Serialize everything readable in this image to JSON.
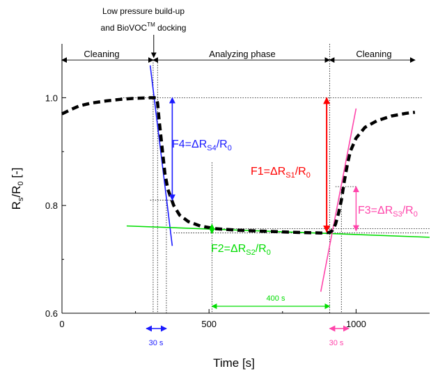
{
  "chart_data": {
    "type": "line",
    "xlabel": "Time [s]",
    "ylabel_main": "R",
    "ylabel_sub1": "s",
    "ylabel_mid": "/R",
    "ylabel_sub2": "0",
    "ylabel_end": " [-]",
    "xlim": [
      0,
      1250
    ],
    "ylim": [
      0.6,
      1.1
    ],
    "x_ticks": [
      {
        "value": 0,
        "label": "0"
      },
      {
        "value": 500,
        "label": "500"
      },
      {
        "value": 1000,
        "label": "1000"
      }
    ],
    "y_ticks": [
      {
        "value": 0.6,
        "label": "0.6"
      },
      {
        "value": 0.8,
        "label": "0.8"
      },
      {
        "value": 1.0,
        "label": "1.0"
      }
    ],
    "series": [
      {
        "color": "#000000",
        "style": "dashed",
        "x": [
          0,
          30,
          60,
          100,
          150,
          200,
          250,
          300,
          320,
          325,
          330,
          340,
          350,
          360,
          380,
          400,
          430,
          470,
          520,
          600,
          700,
          800,
          880,
          910,
          920,
          930,
          940,
          950,
          960,
          970,
          980,
          1000,
          1030,
          1070,
          1120,
          1170,
          1200
        ],
        "y": [
          0.97,
          0.978,
          0.985,
          0.99,
          0.994,
          0.997,
          0.999,
          1.0,
          1.0,
          0.99,
          0.96,
          0.91,
          0.86,
          0.83,
          0.8,
          0.782,
          0.77,
          0.762,
          0.757,
          0.754,
          0.752,
          0.75,
          0.749,
          0.75,
          0.754,
          0.765,
          0.785,
          0.81,
          0.845,
          0.875,
          0.9,
          0.925,
          0.945,
          0.957,
          0.966,
          0.971,
          0.973
        ]
      }
    ],
    "header_annotation": {
      "line1": "Low pressure build-up",
      "line2_pre": "and BioVOC",
      "line2_sup": "TM",
      "line2_post": " docking"
    },
    "phases": [
      {
        "label": "Cleaning",
        "x_start": 0,
        "x_end": 310
      },
      {
        "label": "Analyzing phase",
        "x_start": 310,
        "x_end": 910
      },
      {
        "label": "Cleaning",
        "x_start": 910,
        "x_end": 1200
      }
    ],
    "features": [
      {
        "id": "F1",
        "color": "#ff0000",
        "prefix": "F1=ΔR",
        "sub1": "S1",
        "mid": "/R",
        "sub2": "0"
      },
      {
        "id": "F2",
        "color": "#00dd00",
        "prefix": "F2=ΔR",
        "sub1": "S2",
        "mid": "/R",
        "sub2": "0"
      },
      {
        "id": "F3",
        "color": "#ff44aa",
        "prefix": "F3=ΔR",
        "sub1": "S3",
        "mid": "/R",
        "sub2": "0"
      },
      {
        "id": "F4",
        "color": "#1a1aff",
        "prefix": "F4=ΔR",
        "sub1": "S4",
        "mid": "/R",
        "sub2": "0"
      }
    ],
    "interval_labels": {
      "blue_30s": "30 s",
      "pink_30s": "30 s",
      "green_400s": "400 s"
    },
    "fit_lines": [
      {
        "color": "#1a1aff",
        "x1": 300,
        "y1": 1.06,
        "x2": 375,
        "y2": 0.725
      },
      {
        "color": "#00dd00",
        "x1": 220,
        "y1": 0.762,
        "x2": 1250,
        "y2": 0.741
      },
      {
        "color": "#ff44aa",
        "x1": 880,
        "y1": 0.64,
        "x2": 1000,
        "y2": 0.98
      }
    ],
    "colors": {
      "blue": "#1a1aff",
      "green": "#00dd00",
      "red": "#ff0000",
      "pink": "#ff44aa"
    }
  }
}
